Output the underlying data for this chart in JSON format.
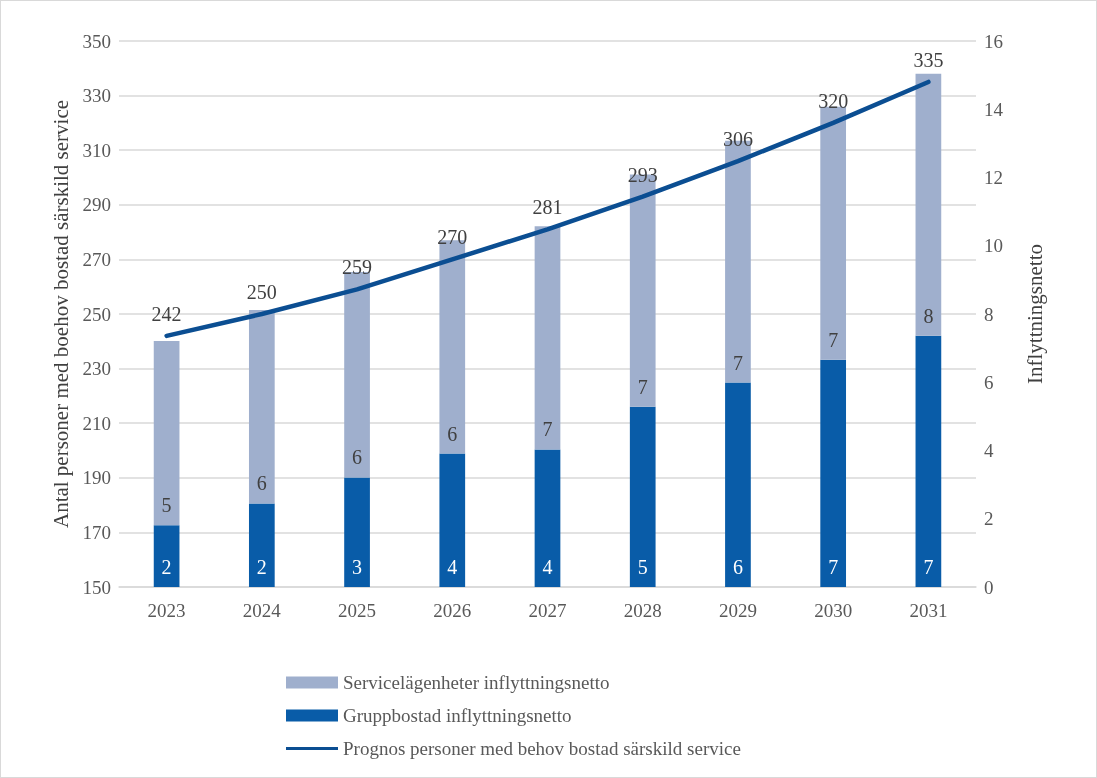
{
  "chart_data": {
    "type": "bar",
    "stacked": true,
    "categories": [
      "2023",
      "2024",
      "2025",
      "2026",
      "2027",
      "2028",
      "2029",
      "2030",
      "2031"
    ],
    "ylabel": "Antal personer med boehov bostad särskild service",
    "y2label": "Inflyttningsnetto",
    "ylim": [
      150,
      350
    ],
    "yticks": [
      150,
      170,
      190,
      210,
      230,
      250,
      270,
      290,
      310,
      330,
      350
    ],
    "y2lim": [
      0,
      16
    ],
    "y2ticks": [
      0,
      2,
      4,
      6,
      8,
      10,
      12,
      14,
      16
    ],
    "grid": "y",
    "legend": "bottom",
    "marker": "none",
    "line_style": "solid",
    "series": [
      {
        "name": "Gruppbostad inflyttningsnetto",
        "axis": "y2",
        "color": "#095ca8",
        "values": [
          1.81,
          2.45,
          3.21,
          3.91,
          4.03,
          5.28,
          5.99,
          6.66,
          7.36
        ],
        "value_labels": [
          "2",
          "2",
          "3",
          "4",
          "4",
          "5",
          "6",
          "7",
          "7"
        ]
      },
      {
        "name": "Servicelägenheter inflyttningsnetto",
        "axis": "y2",
        "color": "#9fafcd",
        "values": [
          5.4,
          5.67,
          6.02,
          6.25,
          6.54,
          6.81,
          7.09,
          7.41,
          7.68
        ],
        "value_labels": [
          "5",
          "6",
          "6",
          "6",
          "7",
          "7",
          "7",
          "7",
          "8"
        ]
      },
      {
        "name": "Prognos personer med behov bostad särskild service",
        "type": "line",
        "axis": "y",
        "color": "#0b4e92",
        "values": [
          242,
          250,
          259,
          270,
          281,
          293,
          306,
          320,
          335
        ],
        "data_labels": true
      }
    ]
  }
}
